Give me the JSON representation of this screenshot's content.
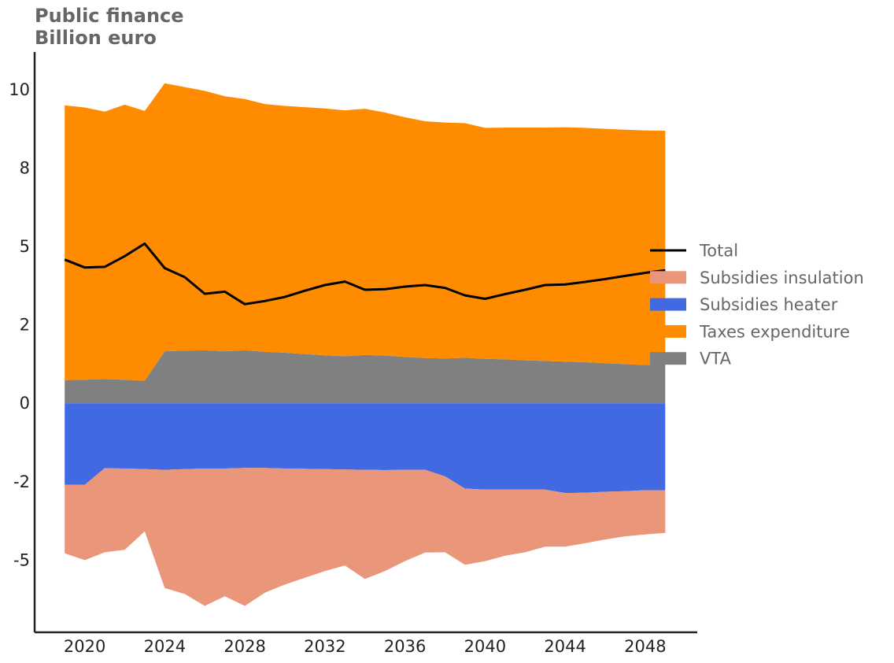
{
  "title_line1": "Public finance",
  "title_line2": "Billion euro",
  "chart_data": {
    "type": "area",
    "x": [
      2019,
      2020,
      2021,
      2022,
      2023,
      2024,
      2025,
      2026,
      2027,
      2028,
      2029,
      2030,
      2031,
      2032,
      2033,
      2034,
      2035,
      2036,
      2037,
      2038,
      2039,
      2040,
      2041,
      2042,
      2043,
      2044,
      2045,
      2046,
      2047,
      2048,
      2049
    ],
    "series": [
      {
        "name": "VTA",
        "color": "#808080",
        "values": [
          0.74,
          0.75,
          0.77,
          0.75,
          0.72,
          1.66,
          1.68,
          1.69,
          1.66,
          1.69,
          1.64,
          1.61,
          1.57,
          1.53,
          1.5,
          1.54,
          1.52,
          1.48,
          1.44,
          1.43,
          1.45,
          1.42,
          1.4,
          1.37,
          1.35,
          1.33,
          1.31,
          1.28,
          1.25,
          1.22,
          1.27
        ]
      },
      {
        "name": "Taxes expenditure",
        "color": "#ff8c00",
        "values": [
          8.76,
          8.68,
          8.53,
          8.77,
          8.6,
          8.54,
          8.4,
          8.27,
          8.13,
          8.01,
          7.9,
          7.87,
          7.87,
          7.87,
          7.84,
          7.85,
          7.75,
          7.64,
          7.55,
          7.52,
          7.48,
          7.36,
          7.39,
          7.42,
          7.44,
          7.47,
          7.47,
          7.47,
          7.47,
          7.48,
          7.42
        ]
      },
      {
        "name": "Subsidies heater",
        "color": "#4169e1",
        "values": [
          -2.6,
          -2.6,
          -2.07,
          -2.08,
          -2.1,
          -2.12,
          -2.1,
          -2.08,
          -2.08,
          -2.06,
          -2.06,
          -2.08,
          -2.09,
          -2.1,
          -2.11,
          -2.12,
          -2.13,
          -2.12,
          -2.12,
          -2.33,
          -2.72,
          -2.75,
          -2.75,
          -2.75,
          -2.75,
          -2.86,
          -2.85,
          -2.82,
          -2.8,
          -2.77,
          -2.77
        ]
      },
      {
        "name": "Subsidies insulation",
        "color": "#e9967a",
        "values": [
          -2.18,
          -2.4,
          -2.68,
          -2.59,
          -1.98,
          -3.77,
          -3.98,
          -4.38,
          -4.07,
          -4.4,
          -3.98,
          -3.7,
          -3.47,
          -3.25,
          -3.06,
          -3.48,
          -3.22,
          -2.91,
          -2.64,
          -2.42,
          -2.43,
          -2.28,
          -2.11,
          -2.0,
          -1.82,
          -1.71,
          -1.61,
          -1.52,
          -1.44,
          -1.41,
          -1.36
        ]
      }
    ],
    "total": {
      "name": "Total",
      "color": "#000000",
      "values": [
        4.58,
        4.33,
        4.35,
        4.69,
        5.09,
        4.31,
        4.02,
        3.49,
        3.56,
        3.16,
        3.26,
        3.39,
        3.59,
        3.77,
        3.88,
        3.62,
        3.64,
        3.72,
        3.77,
        3.68,
        3.44,
        3.33,
        3.48,
        3.62,
        3.77,
        3.79,
        3.87,
        3.96,
        4.06,
        4.16,
        4.24
      ]
    },
    "ylim": [
      -7.3,
      11.2
    ],
    "xlim": [
      2017.5,
      2050.6
    ],
    "y_ticks": [
      10,
      7.5,
      5,
      2.5,
      0,
      -2.5,
      -5
    ],
    "y_tick_labels": [
      "10",
      "8",
      "5",
      "2",
      "0",
      "-2",
      "-5"
    ],
    "x_ticks": [
      2020,
      2024,
      2028,
      2032,
      2036,
      2040,
      2044,
      2048
    ],
    "x_tick_labels": [
      "2020",
      "2024",
      "2028",
      "2032",
      "2036",
      "2040",
      "2044",
      "2048"
    ],
    "legend_position": "right",
    "legend": [
      "Total",
      "Subsidies insulation",
      "Subsidies heater",
      "Taxes expenditure",
      "VTA"
    ],
    "grid": false
  }
}
